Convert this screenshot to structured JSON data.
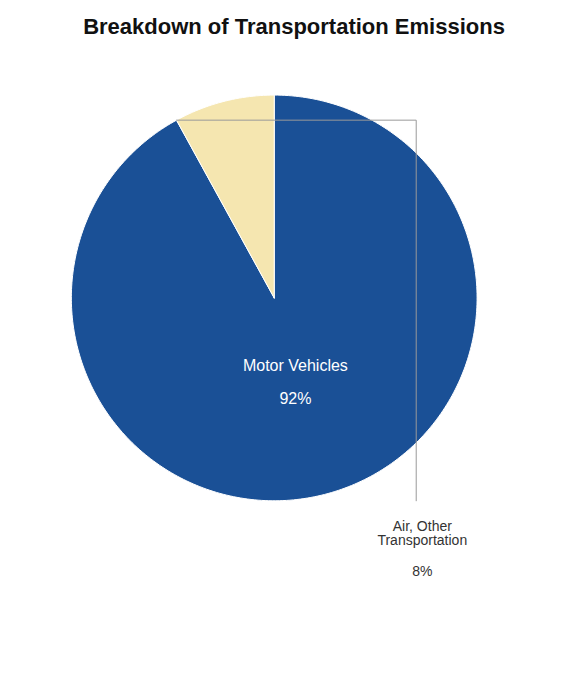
{
  "chart_data": {
    "type": "pie",
    "title": "Breakdown of Transportation Emissions",
    "categories": [
      "Motor Vehicles",
      "Air, Other\nTransportation"
    ],
    "values": [
      92,
      8
    ],
    "value_labels": [
      "92%",
      "8%"
    ],
    "data_labels": true,
    "colors": [
      "#1a5096",
      "#f5e6b0"
    ]
  }
}
